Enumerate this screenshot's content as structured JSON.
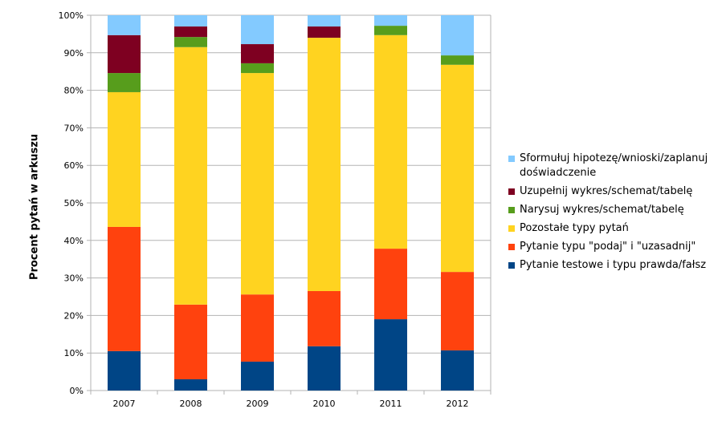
{
  "chart_data": {
    "type": "bar",
    "stacked": true,
    "percent": true,
    "title": "",
    "xlabel": "",
    "ylabel": "Procent pytań w arkuszu",
    "ylim": [
      0,
      100
    ],
    "yticks": [
      "0%",
      "10%",
      "20%",
      "30%",
      "40%",
      "50%",
      "60%",
      "70%",
      "80%",
      "90%",
      "100%"
    ],
    "grid": true,
    "legend_position": "right",
    "categories": [
      "2007",
      "2008",
      "2009",
      "2010",
      "2011",
      "2012"
    ],
    "series": [
      {
        "name": "Pytanie testowe i typu prawda/fałsz",
        "color": "#004586",
        "values": [
          10.5,
          3.0,
          7.7,
          11.8,
          19.0,
          10.7
        ]
      },
      {
        "name": "Pytanie typu \"podaj\" i \"uzasadnij\"",
        "color": "#ff420e",
        "values": [
          33.1,
          19.9,
          17.9,
          14.7,
          18.8,
          20.9
        ]
      },
      {
        "name": "Pozostałe typy pytań",
        "color": "#ffd320",
        "values": [
          35.9,
          68.6,
          59.0,
          67.5,
          56.9,
          55.2
        ]
      },
      {
        "name": "Narysuj wykres/schemat/tabelę",
        "color": "#579d1c",
        "values": [
          5.1,
          2.7,
          2.6,
          0,
          2.5,
          2.5
        ]
      },
      {
        "name": "Uzupełnij wykres/schemat/tabelę",
        "color": "#7e0021",
        "values": [
          10.1,
          2.8,
          5.1,
          3.0,
          0,
          0
        ]
      },
      {
        "name": "Sformułuj hipotezę/wnioski/zaplanuj doświadczenie",
        "color": "#83caff",
        "values": [
          5.3,
          3.0,
          7.7,
          3.0,
          2.8,
          10.7
        ]
      }
    ]
  }
}
